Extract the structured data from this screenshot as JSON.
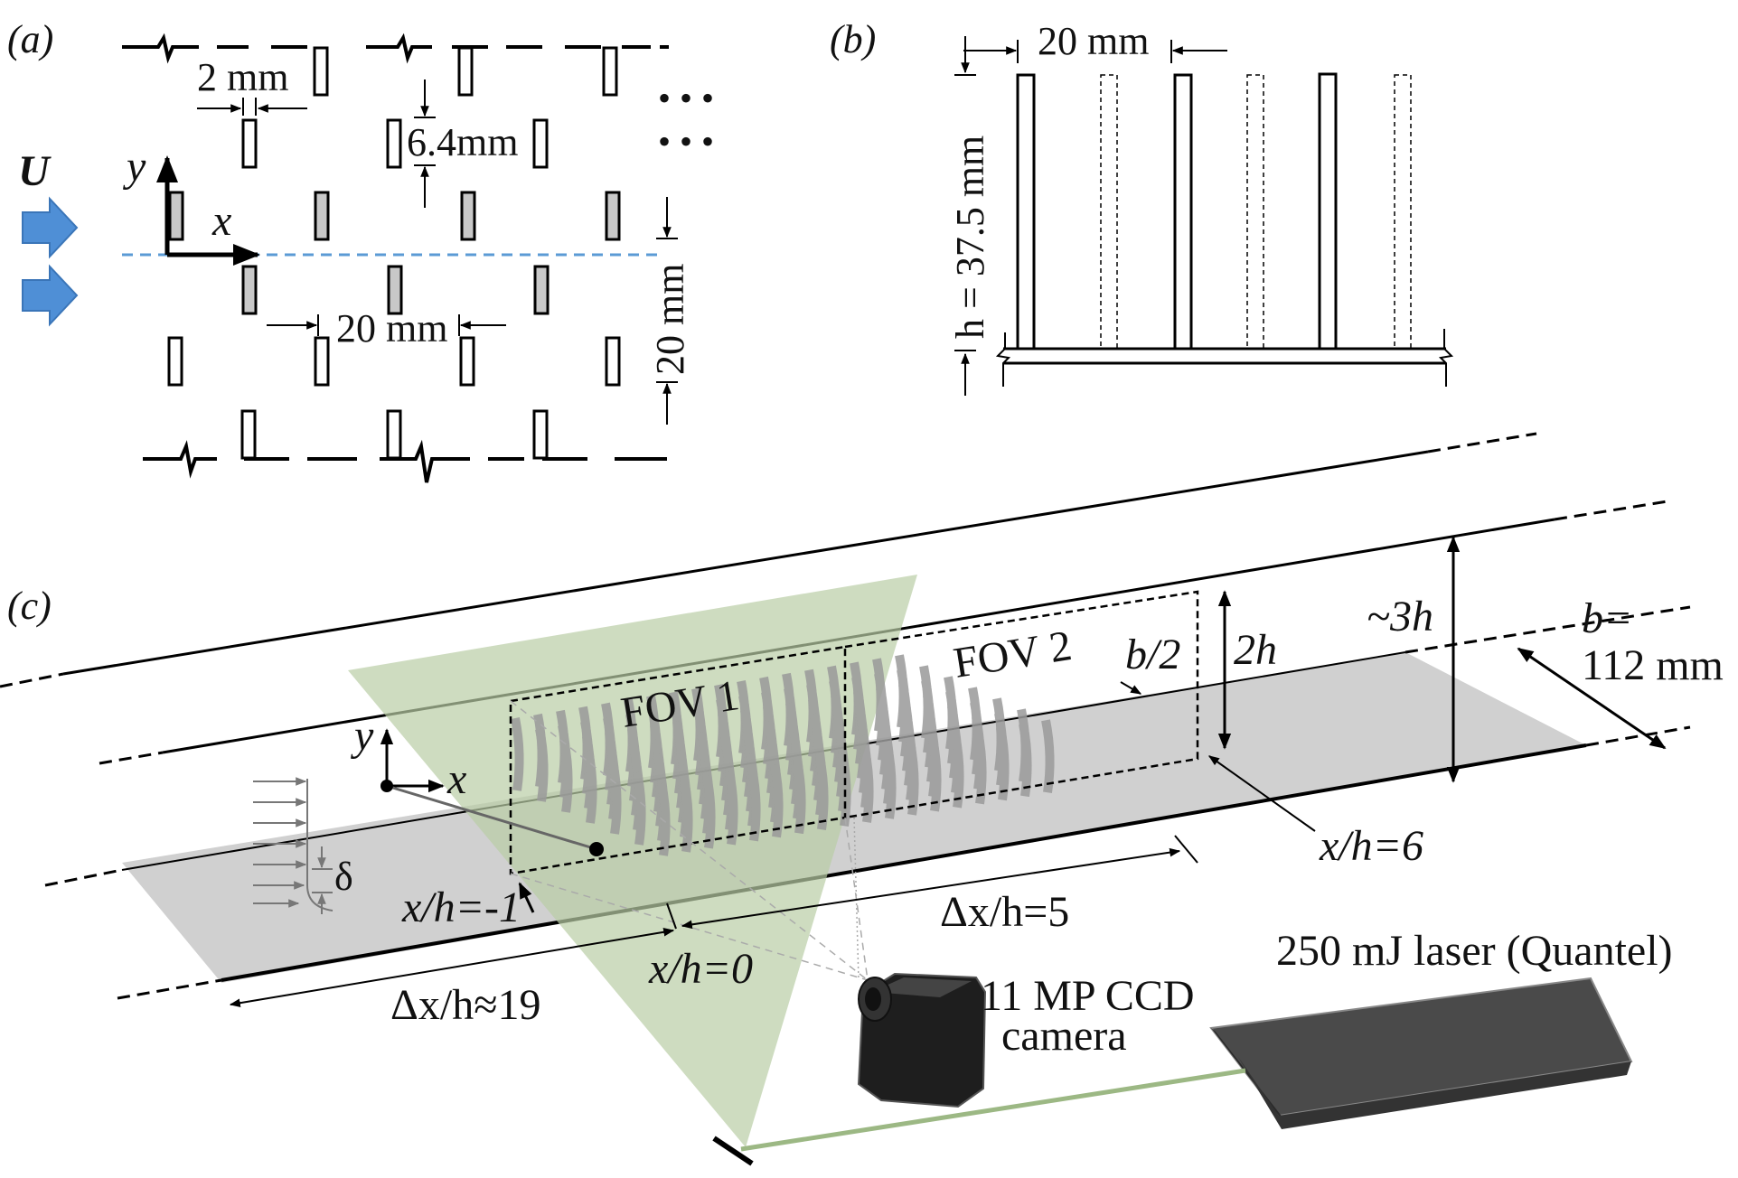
{
  "panel_a": {
    "label": "(a)",
    "dim_width": "2 mm",
    "dim_gap": "6.4mm",
    "dim_streamwise": "20 mm",
    "dim_spanwise": "20 mm",
    "axis_x": "x",
    "axis_y": "y",
    "flow_label": "U",
    "ellipsis": "• • •"
  },
  "panel_b": {
    "label": "(b)",
    "dim_pitch": "20 mm",
    "dim_height": "h = 37.5 mm"
  },
  "panel_c": {
    "label": "(c)",
    "fov1": "FOV 1",
    "fov2": "FOV 2",
    "half_span": "b/2",
    "two_h": "2h",
    "three_h": "~3h",
    "b_label": "b=",
    "b_value": "112 mm",
    "axis_x": "x",
    "axis_y": "y",
    "delta": "δ",
    "xh_m1": "x/h=-1",
    "xh_0": "x/h=0",
    "xh_6": "x/h=6",
    "dx5": "Δx/h=5",
    "dx19": "Δx/h≈19",
    "camera_line1": "11 MP CCD",
    "camera_line2": "camera",
    "laser": "250 mJ laser (Quantel)"
  },
  "colors": {
    "flow_arrow": "#4f8fd6",
    "centerline": "#5b9bd5",
    "laser_sheet": "#b9cda5",
    "floor": "#d0d0d0",
    "element_fill": "#c8c8c8"
  }
}
